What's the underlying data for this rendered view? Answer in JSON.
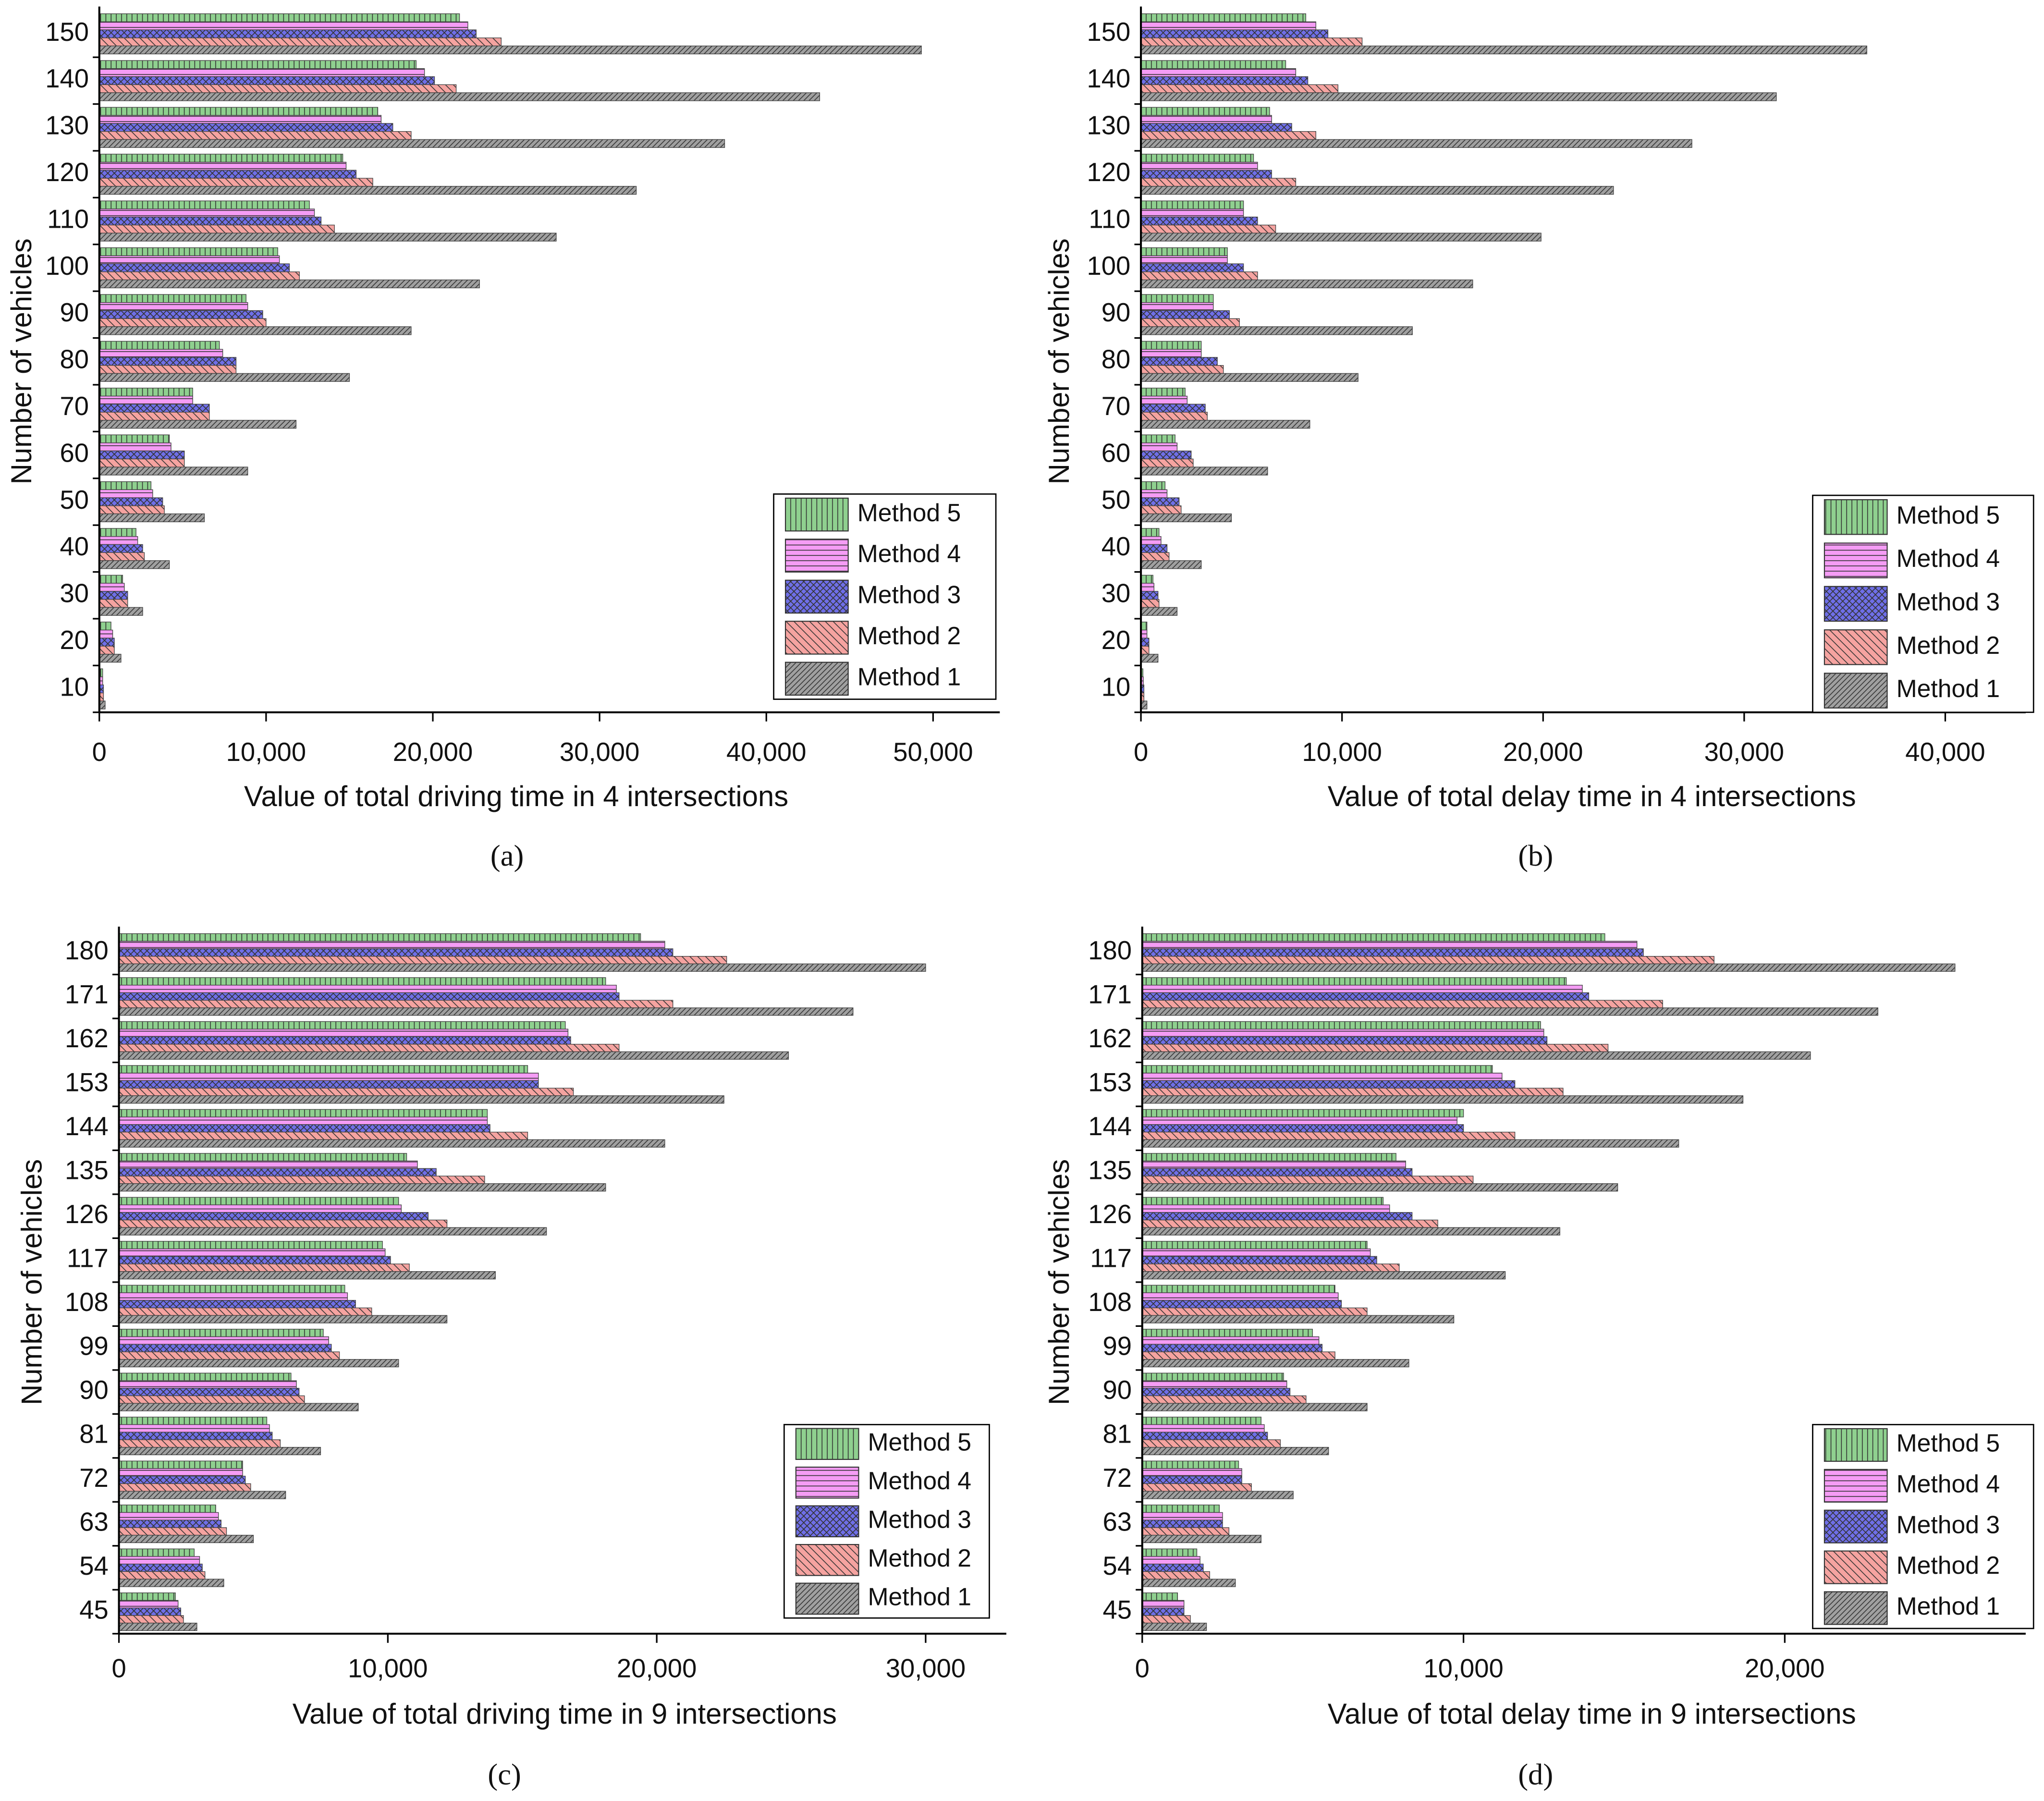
{
  "chart_data": [
    {
      "type": "bar",
      "caption": "(a)",
      "x_label": "Value of total driving time in 4 intersections",
      "y_label": "Number of vehicles",
      "categories": [
        "10",
        "20",
        "30",
        "40",
        "50",
        "60",
        "70",
        "80",
        "90",
        "100",
        "110",
        "120",
        "130",
        "140",
        "150"
      ],
      "series": [
        {
          "name": "Method 5",
          "color": "#8fd08f",
          "values": [
            200,
            700,
            1400,
            2200,
            3100,
            4200,
            5600,
            7200,
            8800,
            10700,
            12600,
            14600,
            16700,
            19000,
            21600
          ]
        },
        {
          "name": "Method 4",
          "color": "#f59cf5",
          "values": [
            200,
            800,
            1500,
            2300,
            3200,
            4300,
            5600,
            7400,
            8900,
            10800,
            12900,
            14800,
            16900,
            19500,
            22100
          ]
        },
        {
          "name": "Method 3",
          "color": "#6f6fe8",
          "values": [
            250,
            900,
            1700,
            2600,
            3800,
            5100,
            6600,
            8200,
            9800,
            11400,
            13300,
            15400,
            17600,
            20100,
            22600
          ]
        },
        {
          "name": "Method 2",
          "color": "#f5a3a0",
          "values": [
            250,
            900,
            1700,
            2700,
            3900,
            5100,
            6600,
            8200,
            10000,
            12000,
            14100,
            16400,
            18700,
            21400,
            24100
          ]
        },
        {
          "name": "Method 1",
          "color": "#a0a0a0",
          "values": [
            350,
            1300,
            2600,
            4200,
            6300,
            8900,
            11800,
            15000,
            18700,
            22800,
            27400,
            32200,
            37500,
            43200,
            49300
          ]
        }
      ],
      "xlim": [
        0,
        54000
      ],
      "xticks": [
        0,
        {
          "value": 10000,
          "label": "10,000"
        },
        {
          "value": 20000,
          "label": "20,000"
        },
        {
          "value": 30000,
          "label": "30,000"
        },
        {
          "value": 40000,
          "label": "40,000"
        },
        {
          "value": 50000,
          "label": "50,000"
        }
      ],
      "legend": "lower right"
    },
    {
      "type": "bar",
      "caption": "(b)",
      "x_label": "Value of total delay time in 4 intersections",
      "y_label": "Number of vehicles",
      "categories": [
        "10",
        "20",
        "30",
        "40",
        "50",
        "60",
        "70",
        "80",
        "90",
        "100",
        "110",
        "120",
        "130",
        "140",
        "150"
      ],
      "series": [
        {
          "name": "Method 5",
          "color": "#8fd08f",
          "values": [
            100,
            300,
            600,
            900,
            1200,
            1700,
            2200,
            3000,
            3600,
            4300,
            5100,
            5600,
            6400,
            7200,
            8200
          ]
        },
        {
          "name": "Method 4",
          "color": "#f59cf5",
          "values": [
            120,
            300,
            650,
            1000,
            1300,
            1800,
            2300,
            3000,
            3600,
            4300,
            5100,
            5800,
            6500,
            7700,
            8700
          ]
        },
        {
          "name": "Method 3",
          "color": "#6f6fe8",
          "values": [
            150,
            400,
            850,
            1300,
            1900,
            2500,
            3200,
            3800,
            4400,
            5100,
            5800,
            6500,
            7500,
            8300,
            9300
          ]
        },
        {
          "name": "Method 2",
          "color": "#f5a3a0",
          "values": [
            150,
            400,
            900,
            1400,
            2000,
            2600,
            3300,
            4100,
            4900,
            5800,
            6700,
            7700,
            8700,
            9800,
            11000
          ]
        },
        {
          "name": "Method 1",
          "color": "#a0a0a0",
          "values": [
            300,
            850,
            1800,
            3000,
            4500,
            6300,
            8400,
            10800,
            13500,
            16500,
            19900,
            23500,
            27400,
            31600,
            36100
          ]
        }
      ],
      "xlim": [
        0,
        44000
      ],
      "xticks": [
        0,
        {
          "value": 10000,
          "label": "10,000"
        },
        {
          "value": 20000,
          "label": "20,000"
        },
        {
          "value": 30000,
          "label": "30,000"
        },
        {
          "value": 40000,
          "label": "40,000"
        }
      ],
      "legend": "lower right"
    },
    {
      "type": "bar",
      "caption": "(c)",
      "x_label": "Value of total driving time in 9 intersections",
      "y_label": "Number of vehicles",
      "categories": [
        "45",
        "54",
        "63",
        "72",
        "81",
        "90",
        "99",
        "108",
        "117",
        "126",
        "135",
        "144",
        "153",
        "162",
        "171",
        "180"
      ],
      "series": [
        {
          "name": "Method 5",
          "color": "#8fd08f",
          "values": [
            2100,
            2800,
            3600,
            4600,
            5500,
            6400,
            7600,
            8400,
            9800,
            10400,
            10700,
            13700,
            15200,
            16600,
            18100,
            19400
          ]
        },
        {
          "name": "Method 4",
          "color": "#f59cf5",
          "values": [
            2200,
            3000,
            3700,
            4600,
            5600,
            6600,
            7800,
            8500,
            9900,
            10500,
            11100,
            13700,
            15600,
            16700,
            18500,
            20300
          ]
        },
        {
          "name": "Method 3",
          "color": "#6f6fe8",
          "values": [
            2300,
            3100,
            3800,
            4700,
            5700,
            6700,
            7900,
            8800,
            10100,
            11500,
            11800,
            13800,
            15600,
            16800,
            18600,
            20600
          ]
        },
        {
          "name": "Method 2",
          "color": "#f5a3a0",
          "values": [
            2400,
            3200,
            4000,
            4900,
            6000,
            6900,
            8200,
            9400,
            10800,
            12200,
            13600,
            15200,
            16900,
            18600,
            20600,
            22600
          ]
        },
        {
          "name": "Method 1",
          "color": "#a0a0a0",
          "values": [
            2900,
            3900,
            5000,
            6200,
            7500,
            8900,
            10400,
            12200,
            14000,
            15900,
            18100,
            20300,
            22500,
            24900,
            27300,
            30000
          ]
        }
      ],
      "xlim": [
        0,
        33000
      ],
      "xticks": [
        0,
        {
          "value": 10000,
          "label": "10,000"
        },
        {
          "value": 20000,
          "label": "20,000"
        },
        {
          "value": 30000,
          "label": "30,000"
        }
      ],
      "legend": "lower right"
    },
    {
      "type": "bar",
      "caption": "(d)",
      "x_label": "Value of total delay time in 9 intersections",
      "y_label": "Number of vehicles",
      "categories": [
        "45",
        "54",
        "63",
        "72",
        "81",
        "90",
        "99",
        "108",
        "117",
        "126",
        "135",
        "144",
        "153",
        "162",
        "171",
        "180"
      ],
      "series": [
        {
          "name": "Method 5",
          "color": "#8fd08f",
          "values": [
            1100,
            1700,
            2400,
            3000,
            3700,
            4400,
            5300,
            6000,
            7000,
            7500,
            7900,
            10000,
            10900,
            12400,
            13200,
            14400
          ]
        },
        {
          "name": "Method 4",
          "color": "#f59cf5",
          "values": [
            1300,
            1800,
            2500,
            3100,
            3800,
            4500,
            5500,
            6100,
            7100,
            7700,
            8200,
            9800,
            11200,
            12500,
            13700,
            15400
          ]
        },
        {
          "name": "Method 3",
          "color": "#6f6fe8",
          "values": [
            1300,
            1900,
            2500,
            3100,
            3900,
            4600,
            5600,
            6200,
            7300,
            8400,
            8400,
            10000,
            11600,
            12600,
            13900,
            15600
          ]
        },
        {
          "name": "Method 2",
          "color": "#f5a3a0",
          "values": [
            1500,
            2100,
            2700,
            3400,
            4300,
            5100,
            6000,
            7000,
            8000,
            9200,
            10300,
            11600,
            13100,
            14500,
            16200,
            17800
          ]
        },
        {
          "name": "Method 1",
          "color": "#a0a0a0",
          "values": [
            2000,
            2900,
            3700,
            4700,
            5800,
            7000,
            8300,
            9700,
            11300,
            13000,
            14800,
            16700,
            18700,
            20800,
            22900,
            25300
          ]
        }
      ],
      "xlim": [
        0,
        27500
      ],
      "xticks": [
        0,
        {
          "value": 10000,
          "label": "10,000"
        },
        {
          "value": 20000,
          "label": "20,000"
        }
      ],
      "legend": "lower right"
    }
  ]
}
